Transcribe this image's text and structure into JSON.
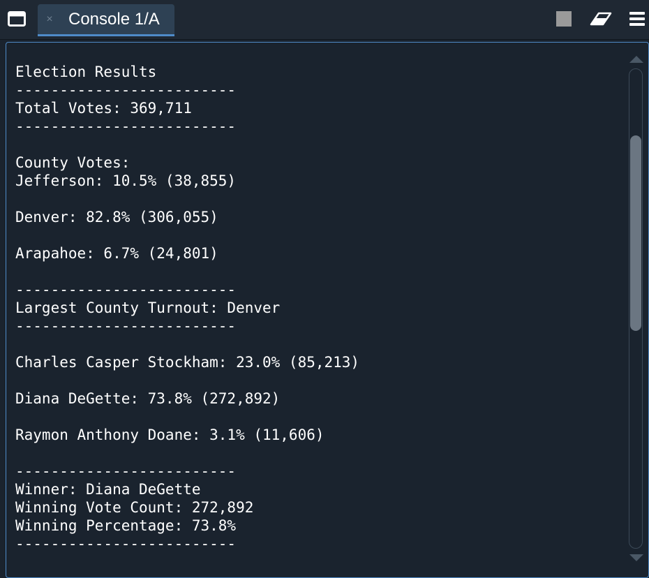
{
  "tab": {
    "title": "Console 1/A",
    "close_glyph": "×"
  },
  "toolbar": {
    "window_icon": "window-icon",
    "stop_icon": "stop-square-icon",
    "clear_icon": "eraser-icon",
    "menu_icon": "hamburger-menu-icon"
  },
  "colors": {
    "background": "#1a232e",
    "tab_active": "#2e4154",
    "accent": "#4f8bc9",
    "text": "#ffffff"
  },
  "console": {
    "lines": [
      "Election Results",
      "-------------------------",
      "Total Votes: 369,711",
      "-------------------------",
      "",
      "County Votes:",
      "Jefferson: 10.5% (38,855)",
      "",
      "Denver: 82.8% (306,055)",
      "",
      "Arapahoe: 6.7% (24,801)",
      "",
      "-------------------------",
      "Largest County Turnout: Denver",
      "-------------------------",
      "",
      "Charles Casper Stockham: 23.0% (85,213)",
      "",
      "Diana DeGette: 73.8% (272,892)",
      "",
      "Raymon Anthony Doane: 3.1% (11,606)",
      "",
      "-------------------------",
      "Winner: Diana DeGette",
      "Winning Vote Count: 272,892",
      "Winning Percentage: 73.8%",
      "-------------------------"
    ]
  }
}
